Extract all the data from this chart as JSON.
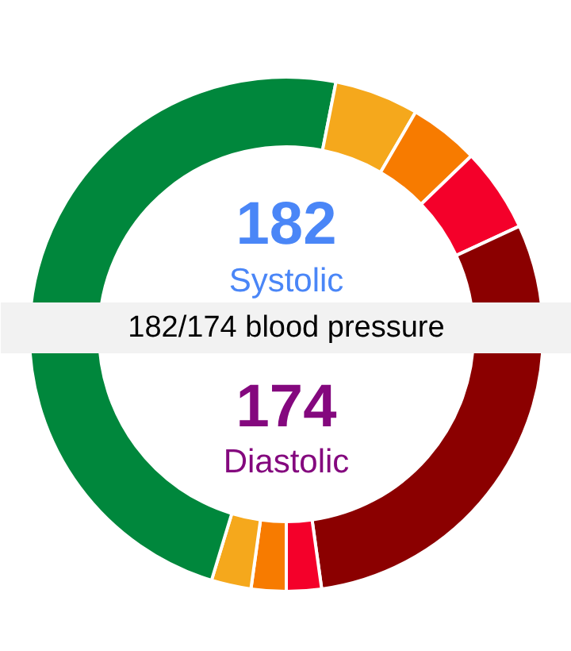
{
  "chart_data": {
    "type": "donut",
    "title": "182/174 blood pressure",
    "annotations": [
      "182",
      "Systolic",
      "174",
      "Diastolic"
    ],
    "categories": [
      null,
      null,
      null,
      null,
      null,
      null,
      null,
      null,
      null,
      null
    ],
    "values": [
      28.1,
      5.3,
      4.4,
      5.3,
      6.9,
      22.8,
      2.2,
      2.2,
      2.5,
      20.3
    ],
    "colors": [
      "#00873c",
      "#f5a81c",
      "#f77b00",
      "#f4002a",
      "#8b0000",
      "#8b0000",
      "#f4002a",
      "#f77b00",
      "#f5a81c",
      "#00873c"
    ]
  }
}
